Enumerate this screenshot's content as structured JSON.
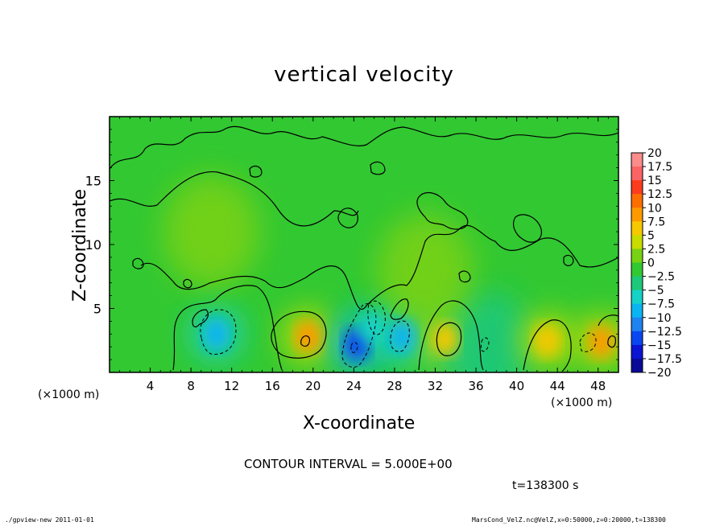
{
  "chart_data": {
    "type": "heatmap",
    "title": "vertical velocity",
    "xlabel": "X-coordinate",
    "ylabel": "Z-coordinate",
    "x_unit_left": "(×1000 m)",
    "x_unit_right": "(×1000 m)",
    "xlim": [
      0,
      50
    ],
    "ylim": [
      0,
      20
    ],
    "x_ticks": [
      "4",
      "8",
      "12",
      "16",
      "20",
      "24",
      "28",
      "32",
      "36",
      "40",
      "44",
      "48"
    ],
    "x_tick_values": [
      4,
      8,
      12,
      16,
      20,
      24,
      28,
      32,
      36,
      40,
      44,
      48
    ],
    "y_ticks": [
      "5",
      "10",
      "15"
    ],
    "y_tick_values": [
      5,
      10,
      15
    ],
    "colorbar": {
      "labels": [
        "20",
        "17.5",
        "15",
        "12.5",
        "10",
        "7.5",
        "5",
        "2.5",
        "0",
        "−2.5",
        "−5",
        "−7.5",
        "−10",
        "−12.5",
        "−15",
        "−17.5",
        "−20"
      ],
      "values": [
        20,
        17.5,
        15,
        12.5,
        10,
        7.5,
        5,
        2.5,
        0,
        -2.5,
        -5,
        -7.5,
        -10,
        -12.5,
        -15,
        -17.5,
        -20
      ],
      "colors": [
        "#fb8c8c",
        "#fb6464",
        "#fc3c1e",
        "#fd6e00",
        "#fd9a00",
        "#f5c800",
        "#c8dc00",
        "#78d214",
        "#32c832",
        "#1ec87a",
        "#14d2c8",
        "#0ab4f0",
        "#1e82f0",
        "#0a46f0",
        "#0a14d2",
        "#0a0a96",
        "#5a0aa0"
      ]
    },
    "features": [
      {
        "x": 10.5,
        "z": 3.0,
        "value": -8
      },
      {
        "x": 19.5,
        "z": 2.8,
        "value": 10
      },
      {
        "x": 24.3,
        "z": 2.2,
        "value": -12
      },
      {
        "x": 25.8,
        "z": 3.5,
        "value": -6
      },
      {
        "x": 28.8,
        "z": 2.8,
        "value": -8
      },
      {
        "x": 33.0,
        "z": 2.6,
        "value": 7
      },
      {
        "x": 37.0,
        "z": 2.0,
        "value": -3
      },
      {
        "x": 43.0,
        "z": 2.5,
        "value": 7
      },
      {
        "x": 48.3,
        "z": 2.4,
        "value": 9
      },
      {
        "x": 10.0,
        "z": 11.0,
        "value": 4
      },
      {
        "x": 31.0,
        "z": 8.0,
        "value": 3
      }
    ]
  },
  "contour_interval": "CONTOUR INTERVAL = 5.000E+00",
  "time_label": "t=138300  s",
  "footer_left": "./gpview-new  2011-01-01",
  "footer_right": "MarsCond_VelZ.nc@VelZ,x=0:50000,z=0:20000,t=138300"
}
